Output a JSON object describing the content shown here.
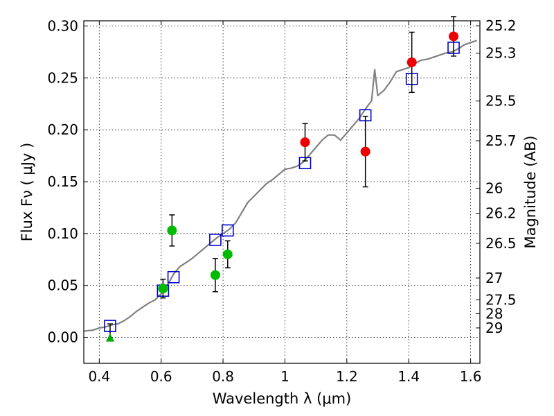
{
  "chart_data": {
    "type": "scatter",
    "title": "",
    "xlabel": "Wavelength  λ (μm)",
    "ylabel": "Flux  Fν  ( μJy )",
    "ylabel_right": "Magnitude (AB)",
    "xlim": [
      0.35,
      1.63
    ],
    "ylim": [
      -0.025,
      0.305
    ],
    "grid": true,
    "x_ticks": [
      0.4,
      0.6,
      0.8,
      1.0,
      1.2,
      1.4,
      1.6
    ],
    "x_tick_labels": [
      "0.4",
      "0.6",
      "0.8",
      "1",
      "1.2",
      "1.4",
      "1.6"
    ],
    "y_ticks": [
      0.0,
      0.05,
      0.1,
      0.15,
      0.2,
      0.25,
      0.3
    ],
    "y_tick_labels": [
      "0.00",
      "0.05",
      "0.10",
      "0.15",
      "0.20",
      "0.25",
      "0.30"
    ],
    "right_ticks": [
      {
        "label": "25.2",
        "flux": 0.3002
      },
      {
        "label": "25.3",
        "flux": 0.2738
      },
      {
        "label": "25.5",
        "flux": 0.2277
      },
      {
        "label": "25.7",
        "flux": 0.1894
      },
      {
        "label": "26",
        "flux": 0.1437
      },
      {
        "label": "26.2",
        "flux": 0.1195
      },
      {
        "label": "26.5",
        "flux": 0.0906
      },
      {
        "label": "27",
        "flux": 0.0572
      },
      {
        "label": "27.5",
        "flux": 0.0361
      },
      {
        "label": "28",
        "flux": 0.0228
      },
      {
        "label": "29",
        "flux": 0.0091
      }
    ],
    "series": [
      {
        "marker": "line",
        "color": "#808080",
        "x": [
          0.35,
          0.38,
          0.4,
          0.42,
          0.44,
          0.46,
          0.48,
          0.5,
          0.52,
          0.54,
          0.56,
          0.58,
          0.6,
          0.62,
          0.64,
          0.66,
          0.68,
          0.7,
          0.72,
          0.74,
          0.76,
          0.78,
          0.8,
          0.82,
          0.84,
          0.86,
          0.88,
          0.9,
          0.92,
          0.94,
          0.96,
          0.98,
          1.0,
          1.02,
          1.04,
          1.06,
          1.08,
          1.1,
          1.12,
          1.14,
          1.16,
          1.18,
          1.2,
          1.22,
          1.24,
          1.26,
          1.28,
          1.29,
          1.3,
          1.32,
          1.34,
          1.36,
          1.38,
          1.4,
          1.42,
          1.44,
          1.46,
          1.48,
          1.5,
          1.52,
          1.54,
          1.56,
          1.58,
          1.6,
          1.62
        ],
        "y": [
          0.006,
          0.007,
          0.009,
          0.01,
          0.012,
          0.013,
          0.016,
          0.02,
          0.025,
          0.029,
          0.033,
          0.036,
          0.042,
          0.05,
          0.061,
          0.068,
          0.072,
          0.076,
          0.081,
          0.086,
          0.091,
          0.096,
          0.1,
          0.104,
          0.11,
          0.12,
          0.13,
          0.136,
          0.142,
          0.148,
          0.152,
          0.157,
          0.162,
          0.163,
          0.165,
          0.169,
          0.176,
          0.183,
          0.19,
          0.195,
          0.195,
          0.19,
          0.197,
          0.204,
          0.211,
          0.22,
          0.228,
          0.258,
          0.233,
          0.238,
          0.246,
          0.256,
          0.258,
          0.26,
          0.264,
          0.267,
          0.268,
          0.27,
          0.272,
          0.274,
          0.275,
          0.278,
          0.282,
          0.284,
          0.286
        ]
      },
      {
        "marker": "open-square",
        "color": "#0000cc",
        "x": [
          0.435,
          0.606,
          0.64,
          0.775,
          0.815,
          1.065,
          1.26,
          1.41,
          1.545
        ],
        "y": [
          0.011,
          0.045,
          0.058,
          0.094,
          0.103,
          0.168,
          0.214,
          0.249,
          0.279
        ]
      },
      {
        "marker": "circle",
        "color": "#ee0000",
        "x": [
          1.065,
          1.26,
          1.41,
          1.545
        ],
        "y": [
          0.188,
          0.179,
          0.265,
          0.29
        ],
        "err": [
          0.018,
          0.034,
          0.029,
          0.019
        ]
      },
      {
        "marker": "circle",
        "color": "#00bb00",
        "x": [
          0.606,
          0.635,
          0.775,
          0.815
        ],
        "y": [
          0.047,
          0.103,
          0.06,
          0.08
        ],
        "err": [
          0.009,
          0.015,
          0.016,
          0.013
        ]
      },
      {
        "marker": "triangle",
        "color": "#00aa00",
        "x": [
          0.435
        ],
        "y": [
          0.0
        ],
        "err_up": [
          0.013
        ]
      }
    ]
  }
}
